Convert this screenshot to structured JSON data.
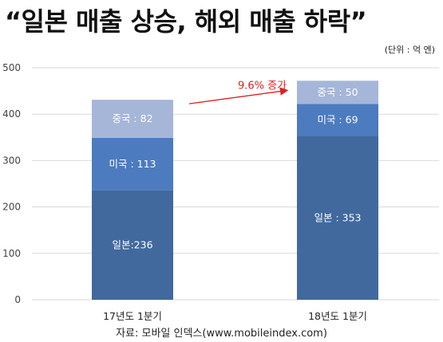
{
  "title": "“일본 매출 상승, 해외 매출 하락”",
  "unit_note": "(단위 : 억 엔)",
  "source": "자료: 모바일 인덱스(www.mobileindex.com)",
  "colors": {
    "japan": "#41699e",
    "usa": "#4c7bbf",
    "china": "#a5b6d8",
    "grid": "#d9d9d9",
    "annotation": "#e02020"
  },
  "chart_data": {
    "type": "bar",
    "stacked": true,
    "categories": [
      "17년도 1분기",
      "18년도 1분기"
    ],
    "series": [
      {
        "key": "japan",
        "values": [
          236,
          353
        ],
        "labels": [
          "일본:236",
          "일본 : 353"
        ]
      },
      {
        "key": "usa",
        "values": [
          113,
          69
        ],
        "labels": [
          "미국 : 113",
          "미국 : 69"
        ]
      },
      {
        "key": "china",
        "values": [
          82,
          50
        ],
        "labels": [
          "중국 : 82",
          "중국 : 50"
        ]
      }
    ],
    "yticks": [
      0,
      100,
      200,
      300,
      400,
      500
    ],
    "ylim": [
      0,
      500
    ],
    "grid": true,
    "annotation": {
      "text": "9.6% 증가"
    }
  }
}
